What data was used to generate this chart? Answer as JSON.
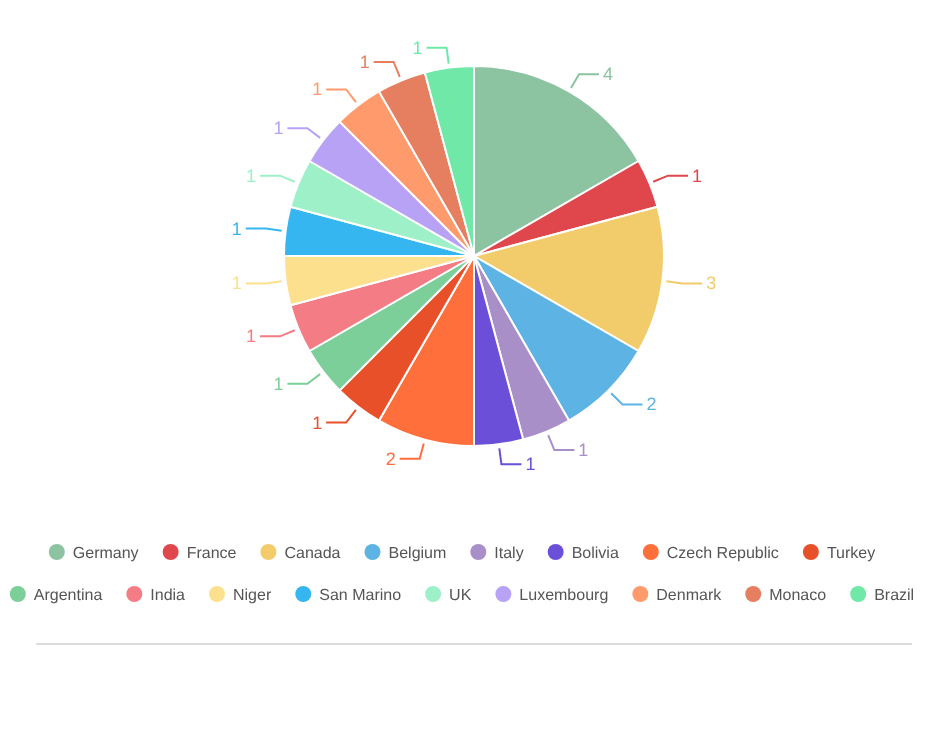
{
  "chart_data": {
    "type": "pie",
    "categories": [
      "Germany",
      "France",
      "Canada",
      "Belgium",
      "Italy",
      "Bolivia",
      "Czech Republic",
      "Turkey",
      "Argentina",
      "India",
      "Niger",
      "San Marino",
      "UK",
      "Luxembourg",
      "Denmark",
      "Monaco",
      "Brazil"
    ],
    "values": [
      4,
      1,
      3,
      2,
      1,
      1,
      2,
      1,
      1,
      1,
      1,
      1,
      1,
      1,
      1,
      1,
      1
    ],
    "colors": [
      "#8cc3a0",
      "#e0474c",
      "#f2cc6b",
      "#5db3e4",
      "#a98fc7",
      "#6b4fd8",
      "#ff6f3c",
      "#e8502a",
      "#7ccf98",
      "#f47c84",
      "#fde08e",
      "#36b6f0",
      "#9ef0c8",
      "#b7a2f5",
      "#ff9a6c",
      "#e67f5f",
      "#6fe8a8"
    ],
    "data_labels": true,
    "legend": "bottom"
  }
}
